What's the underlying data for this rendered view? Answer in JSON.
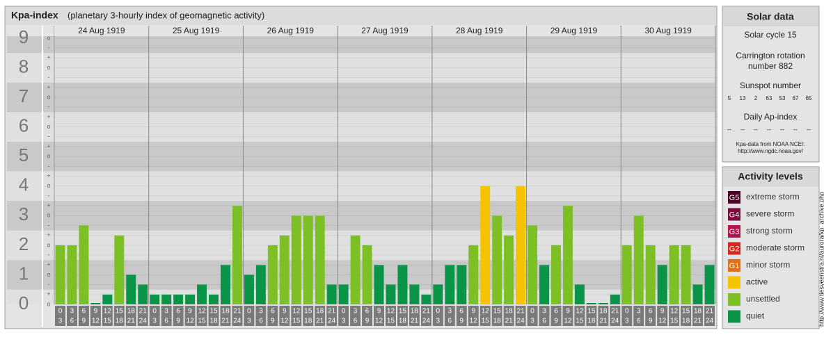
{
  "chart_data": {
    "type": "bar",
    "title": "Kpa-index",
    "subtitle": "(planetary 3-hourly index of geomagnetic activity)",
    "days": [
      "24 Aug 1919",
      "25 Aug 1919",
      "26 Aug 1919",
      "27 Aug 1919",
      "28 Aug 1919",
      "29 Aug 1919",
      "30 Aug 1919"
    ],
    "hour_labels": [
      [
        "0",
        "3"
      ],
      [
        "3",
        "6"
      ],
      [
        "6",
        "9"
      ],
      [
        "9",
        "12"
      ],
      [
        "12",
        "15"
      ],
      [
        "15",
        "18"
      ],
      [
        "18",
        "21"
      ],
      [
        "21",
        "24"
      ]
    ],
    "values": [
      2,
      2,
      2.67,
      0,
      0.33,
      2.33,
      1,
      0.67,
      0.33,
      0.33,
      0.33,
      0.33,
      0.67,
      0.33,
      1.33,
      3.33,
      1,
      1.33,
      2,
      2.33,
      3,
      3,
      3,
      0.67,
      0.67,
      2.33,
      2,
      1.33,
      0.67,
      1.33,
      0.67,
      0.33,
      0.67,
      1.33,
      1.33,
      2,
      4,
      3,
      2.33,
      4,
      2.67,
      1.33,
      2,
      3.33,
      0.67,
      0,
      0,
      0.33,
      2,
      3,
      2,
      1.33,
      2,
      2,
      0.67,
      1.33
    ],
    "colors": [
      "#7cc026",
      "#7cc026",
      "#7cc026",
      "#0a9448",
      "#0a9448",
      "#7cc026",
      "#0a9448",
      "#0a9448",
      "#0a9448",
      "#0a9448",
      "#0a9448",
      "#0a9448",
      "#0a9448",
      "#0a9448",
      "#0a9448",
      "#7cc026",
      "#0a9448",
      "#0a9448",
      "#7cc026",
      "#7cc026",
      "#7cc026",
      "#7cc026",
      "#7cc026",
      "#0a9448",
      "#0a9448",
      "#7cc026",
      "#7cc026",
      "#0a9448",
      "#0a9448",
      "#0a9448",
      "#0a9448",
      "#0a9448",
      "#0a9448",
      "#0a9448",
      "#0a9448",
      "#7cc026",
      "#f5c400",
      "#7cc026",
      "#7cc026",
      "#f5c400",
      "#7cc026",
      "#0a9448",
      "#7cc026",
      "#7cc026",
      "#0a9448",
      "#0a9448",
      "#0a9448",
      "#0a9448",
      "#7cc026",
      "#7cc026",
      "#7cc026",
      "#0a9448",
      "#7cc026",
      "#7cc026",
      "#0a9448",
      "#0a9448"
    ],
    "ylim": [
      0,
      9
    ],
    "yticks": [
      0,
      1,
      2,
      3,
      4,
      5,
      6,
      7,
      8,
      9
    ],
    "minor_tick_labels": [
      "-",
      "o",
      "+"
    ]
  },
  "solar_data": {
    "title": "Solar data",
    "cycle": "Solar cycle 15",
    "carrington": [
      "Carrington rotation",
      "number 882"
    ],
    "sunspot_title": "Sunspot number",
    "sunspots": [
      "5",
      "13",
      "2",
      "63",
      "53",
      "67",
      "65"
    ],
    "ap_title": "Daily Ap-index",
    "ap": [
      "--",
      "--",
      "--",
      "--",
      "--",
      "--",
      "--"
    ],
    "source": [
      "Kpa-data from NOAA NCEI:",
      "http://www.ngdc.noaa.gov/"
    ]
  },
  "activity_levels": {
    "title": "Activity levels",
    "items": [
      {
        "code": "G5",
        "label": "extreme storm",
        "color": "#4a0426"
      },
      {
        "code": "G4",
        "label": "severe storm",
        "color": "#7a0c3e"
      },
      {
        "code": "G3",
        "label": "strong storm",
        "color": "#b5124f"
      },
      {
        "code": "G2",
        "label": "moderate storm",
        "color": "#d4281e"
      },
      {
        "code": "G1",
        "label": "minor storm",
        "color": "#e07018"
      },
      {
        "code": null,
        "label": "active",
        "color": "#f5c400"
      },
      {
        "code": null,
        "label": "unsettled",
        "color": "#7cc026"
      },
      {
        "code": null,
        "label": "quiet",
        "color": "#0a9448"
      }
    ]
  },
  "side_url": "http://www.tiesveenstra.nl/aurora/kp_archive.php"
}
